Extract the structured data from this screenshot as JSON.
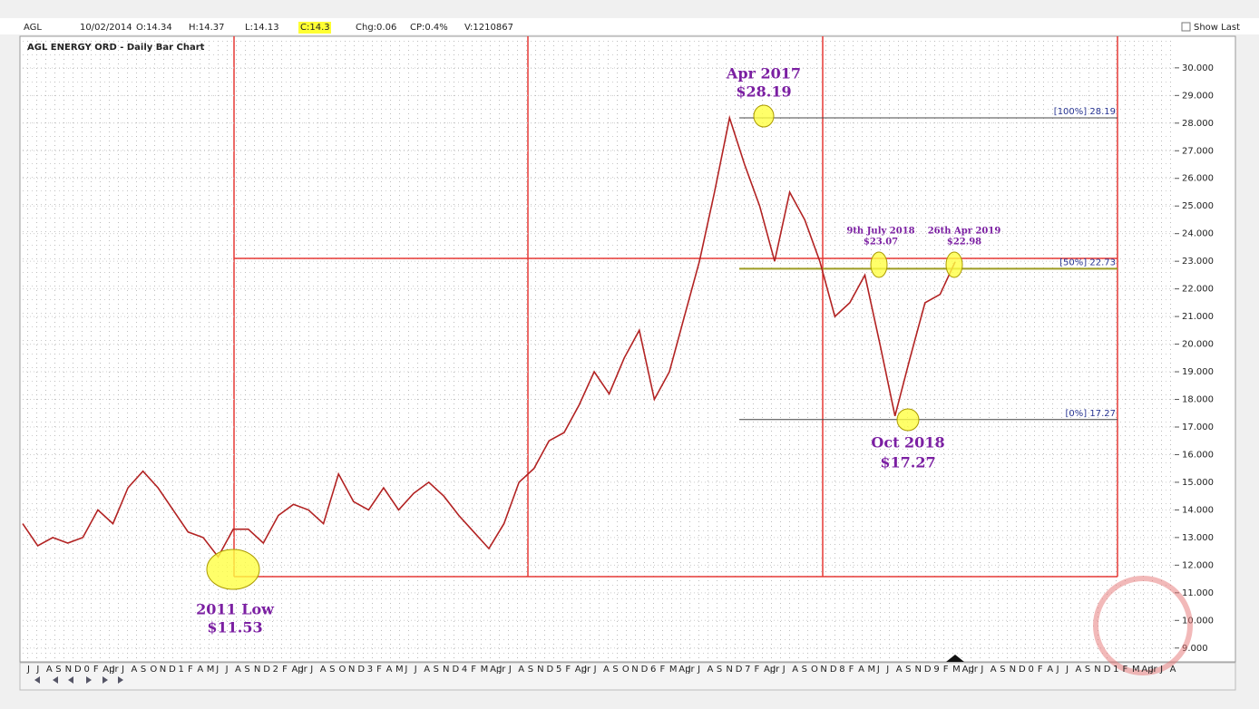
{
  "header": {
    "symbol": "AGL",
    "date": "10/02/2014",
    "open": "O:14.34",
    "high": "H:14.37",
    "low": "L:14.13",
    "close": "C:14.3",
    "change": "Chg:0.06",
    "change_pct": "CP:0.4%",
    "volume": "V:1210867",
    "show_last": "Show Last"
  },
  "chart_data": {
    "type": "line",
    "title": "AGL ENERGY ORD - Daily Bar Chart",
    "color": "#b22222",
    "values": [
      13.5,
      12.7,
      13.0,
      12.8,
      13.0,
      14.0,
      13.5,
      14.8,
      15.4,
      14.8,
      14.0,
      13.2,
      13.0,
      12.3,
      13.3,
      13.3,
      12.8,
      13.8,
      14.2,
      14.0,
      13.5,
      15.3,
      14.3,
      14.0,
      14.8,
      14.0,
      14.6,
      15.0,
      14.5,
      13.8,
      13.2,
      12.6,
      13.5,
      15.0,
      15.5,
      16.5,
      16.8,
      17.8,
      19.0,
      18.2,
      19.5,
      20.5,
      18.0,
      19.0,
      21.0,
      23.0,
      25.5,
      28.19,
      26.5,
      25.0,
      23.0,
      25.5,
      24.5,
      23.0,
      21.0,
      21.5,
      22.5,
      20.0,
      17.4,
      19.5,
      21.5,
      21.8,
      22.98
    ],
    "ylim": [
      8.5,
      31.8
    ],
    "yticks": [
      {
        "value": 9,
        "label": "9.000"
      },
      {
        "value": 10,
        "label": "10.000"
      },
      {
        "value": 11,
        "label": "11.000"
      },
      {
        "value": 12,
        "label": "12.000"
      },
      {
        "value": 13,
        "label": "13.000"
      },
      {
        "value": 14,
        "label": "14.000"
      },
      {
        "value": 15,
        "label": "15.000"
      },
      {
        "value": 16,
        "label": "16.000"
      },
      {
        "value": 17,
        "label": "17.000"
      },
      {
        "value": 18,
        "label": "18.000"
      },
      {
        "value": 19,
        "label": "19.000"
      },
      {
        "value": 20,
        "label": "20.000"
      },
      {
        "value": 21,
        "label": "21.000"
      },
      {
        "value": 22,
        "label": "22.000"
      },
      {
        "value": 23,
        "label": "23.000"
      },
      {
        "value": 24,
        "label": "24.000"
      },
      {
        "value": 25,
        "label": "25.000"
      },
      {
        "value": 26,
        "label": "26.000"
      },
      {
        "value": 27,
        "label": "27.000"
      },
      {
        "value": 28,
        "label": "28.000"
      },
      {
        "value": 29,
        "label": "29.000"
      },
      {
        "value": 30,
        "label": "30.000"
      }
    ],
    "grid": true,
    "fib_levels": [
      {
        "value": 28.19,
        "label": "[100%] 28.19"
      },
      {
        "value": 22.73,
        "label": "[50%] 22.73"
      },
      {
        "value": 17.27,
        "label": "[0%] 17.27"
      }
    ],
    "annotations": {
      "peak_date": "Apr 2017",
      "peak_price": "$28.19",
      "july_date": "9th July 2018",
      "july_price": "$23.07",
      "april_date": "26th Apr 2019",
      "april_price": "$22.98",
      "trough_date": "Oct 2018",
      "trough_price": "$17.27",
      "low_date": "2011 Low",
      "low_price": "$11.53"
    },
    "x_labels": [
      "J",
      "J",
      "A",
      "S",
      "N",
      "D",
      "0",
      "F",
      "Apr",
      "J",
      "J",
      "A",
      "S",
      "O",
      "N",
      "D",
      "1",
      "F",
      "A",
      "M",
      "J",
      "J",
      "A",
      "S",
      "N",
      "D",
      "2",
      "F",
      "Apr",
      "J",
      "J",
      "A",
      "S",
      "O",
      "N",
      "D",
      "3",
      "F",
      "A",
      "M",
      "J",
      "J",
      "A",
      "S",
      "N",
      "D",
      "4",
      "F",
      "M",
      "Apr",
      "J",
      "J",
      "A",
      "S",
      "N",
      "D",
      "5",
      "F",
      "Apr",
      "J",
      "J",
      "A",
      "S",
      "O",
      "N",
      "D",
      "6",
      "F",
      "M",
      "Apr",
      "J",
      "J",
      "A",
      "S",
      "N",
      "D",
      "7",
      "F",
      "Apr",
      "J",
      "J",
      "A",
      "S",
      "O",
      "N",
      "D",
      "8",
      "F",
      "A",
      "M",
      "J",
      "J",
      "A",
      "S",
      "N",
      "D",
      "9",
      "F",
      "M",
      "Apr",
      "J",
      "J",
      "A",
      "S",
      "N",
      "D",
      "0",
      "F",
      "A",
      "J",
      "J",
      "A",
      "S",
      "N",
      "D",
      "1",
      "F",
      "M",
      "Apr",
      "J",
      "J",
      "A"
    ]
  }
}
